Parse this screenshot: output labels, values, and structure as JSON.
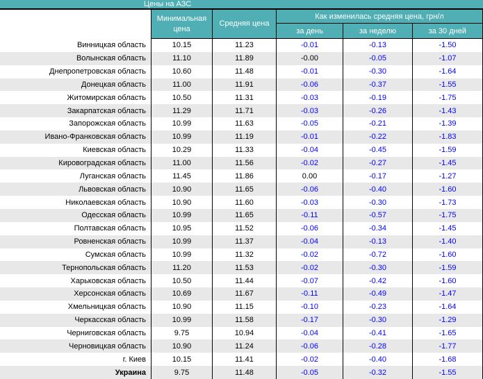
{
  "title": "Цены на АЗС",
  "colors": {
    "header_teal": "#4FAFB4",
    "row_alternate": "#E8E8E8",
    "negative_value": "#0000FF",
    "header_text": "#FFFFFF"
  },
  "table": {
    "columns": {
      "min_price": "Минимальная цена",
      "avg_price": "Средняя цена",
      "change_group": "Как изменилась средняя цена, грн/л",
      "change_day": "за день",
      "change_week": "за неделю",
      "change_month": "за 30 дней"
    },
    "rows": [
      {
        "region": "Винницкая область",
        "min": "10.15",
        "avg": "11.23",
        "day": "-0.01",
        "week": "-0.13",
        "month": "-1.50"
      },
      {
        "region": "Волынская область",
        "min": "11.10",
        "avg": "11.89",
        "day": "-0.00",
        "week": "-0.05",
        "month": "-1.07"
      },
      {
        "region": "Днепропетровская область",
        "min": "10.60",
        "avg": "11.48",
        "day": "-0.01",
        "week": "-0.30",
        "month": "-1.64"
      },
      {
        "region": "Донецкая область",
        "min": "11.00",
        "avg": "11.91",
        "day": "-0.06",
        "week": "-0.37",
        "month": "-1.55"
      },
      {
        "region": "Житомирская область",
        "min": "10.50",
        "avg": "11.31",
        "day": "-0.03",
        "week": "-0.19",
        "month": "-1.75"
      },
      {
        "region": "Закарпатская область",
        "min": "11.29",
        "avg": "11.71",
        "day": "-0.03",
        "week": "-0.26",
        "month": "-1.43"
      },
      {
        "region": "Запорожская область",
        "min": "10.99",
        "avg": "11.63",
        "day": "-0.05",
        "week": "-0.21",
        "month": "-1.39"
      },
      {
        "region": "Ивано-Франковская область",
        "min": "10.99",
        "avg": "11.19",
        "day": "-0.01",
        "week": "-0.22",
        "month": "-1.83"
      },
      {
        "region": "Киевская область",
        "min": "10.29",
        "avg": "11.33",
        "day": "-0.04",
        "week": "-0.45",
        "month": "-1.59"
      },
      {
        "region": "Кировоградская область",
        "min": "11.00",
        "avg": "11.56",
        "day": "-0.02",
        "week": "-0.27",
        "month": "-1.45"
      },
      {
        "region": "Луганская область",
        "min": "11.45",
        "avg": "11.86",
        "day": "0.00",
        "week": "-0.17",
        "month": "-1.27"
      },
      {
        "region": "Львовская область",
        "min": "10.90",
        "avg": "11.65",
        "day": "-0.06",
        "week": "-0.40",
        "month": "-1.60"
      },
      {
        "region": "Николаевская область",
        "min": "10.90",
        "avg": "11.60",
        "day": "-0.03",
        "week": "-0.30",
        "month": "-1.73"
      },
      {
        "region": "Одесская область",
        "min": "10.99",
        "avg": "11.65",
        "day": "-0.11",
        "week": "-0.57",
        "month": "-1.75"
      },
      {
        "region": "Полтавская область",
        "min": "10.95",
        "avg": "11.52",
        "day": "-0.06",
        "week": "-0.34",
        "month": "-1.45"
      },
      {
        "region": "Ровненская область",
        "min": "10.99",
        "avg": "11.37",
        "day": "-0.04",
        "week": "-0.13",
        "month": "-1.40"
      },
      {
        "region": "Сумская область",
        "min": "10.99",
        "avg": "11.32",
        "day": "-0.02",
        "week": "-0.72",
        "month": "-1.60"
      },
      {
        "region": "Тернопольская область",
        "min": "11.20",
        "avg": "11.53",
        "day": "-0.02",
        "week": "-0.30",
        "month": "-1.59"
      },
      {
        "region": "Харьковская область",
        "min": "10.50",
        "avg": "11.44",
        "day": "-0.07",
        "week": "-0.42",
        "month": "-1.60"
      },
      {
        "region": "Херсонская область",
        "min": "10.69",
        "avg": "11.67",
        "day": "-0.11",
        "week": "-0.49",
        "month": "-1.47"
      },
      {
        "region": "Хмельницкая область",
        "min": "10.90",
        "avg": "11.15",
        "day": "-0.10",
        "week": "-0.23",
        "month": "-1.64"
      },
      {
        "region": "Черкасская область",
        "min": "10.99",
        "avg": "11.58",
        "day": "-0.17",
        "week": "-0.30",
        "month": "-1.29"
      },
      {
        "region": "Черниговская область",
        "min": "9.75",
        "avg": "10.94",
        "day": "-0.04",
        "week": "-0.41",
        "month": "-1.65"
      },
      {
        "region": "Черновицкая область",
        "min": "10.90",
        "avg": "11.24",
        "day": "-0.06",
        "week": "-0.28",
        "month": "-1.77"
      },
      {
        "region": "г. Киев",
        "min": "10.15",
        "avg": "11.41",
        "day": "-0.02",
        "week": "-0.40",
        "month": "-1.68"
      },
      {
        "region": "Украина",
        "bold": true,
        "min": "9.75",
        "avg": "11.48",
        "day": "-0.05",
        "week": "-0.32",
        "month": "-1.55"
      }
    ]
  }
}
